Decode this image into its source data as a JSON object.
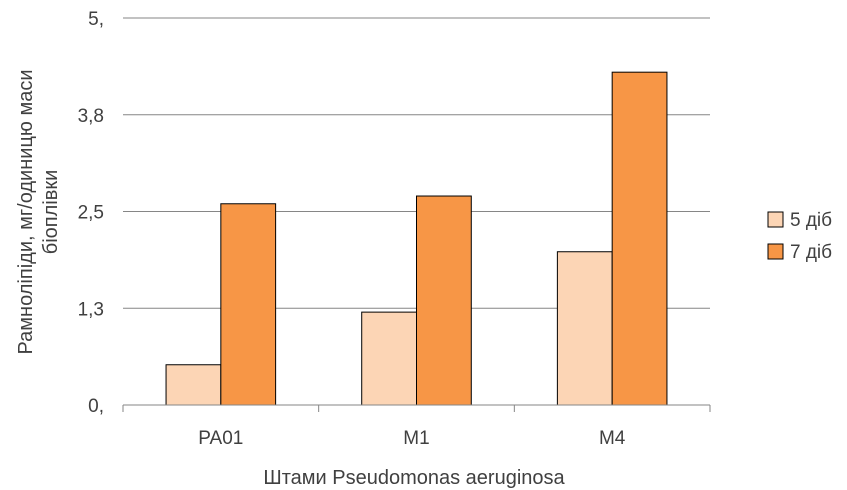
{
  "chart_data": {
    "type": "bar",
    "title": "",
    "xlabel": "Штами Pseudomonas  aeruginosa",
    "ylabel": [
      "Рамноліпіди, мг/одиницю маси",
      "біоплівки"
    ],
    "categories": [
      "PA01",
      "M1",
      "M4"
    ],
    "series": [
      {
        "name": "5 діб",
        "values": [
          0.52,
          1.2,
          1.98
        ],
        "color": "#FCD5B5"
      },
      {
        "name": "7 діб",
        "values": [
          2.6,
          2.7,
          4.3
        ],
        "color": "#F79646"
      }
    ],
    "ylim": [
      0,
      5
    ],
    "yticks": [
      {
        "value": 0,
        "label": "0,"
      },
      {
        "value": 1.25,
        "label": "1,3"
      },
      {
        "value": 2.5,
        "label": "2,5"
      },
      {
        "value": 3.75,
        "label": "3,8"
      },
      {
        "value": 5,
        "label": "5,"
      }
    ],
    "grid": true,
    "legend_position": "right"
  }
}
